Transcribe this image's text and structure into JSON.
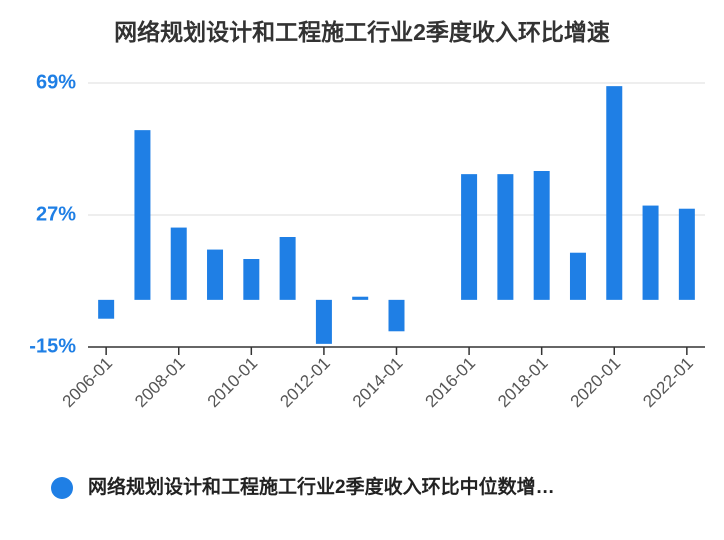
{
  "chart_data": {
    "type": "bar",
    "title": "网络规划设计和工程施工行业2季度收入环比增速",
    "categories": [
      "2006-01",
      null,
      "2008-01",
      null,
      "2010-01",
      null,
      "2012-01",
      null,
      "2014-01",
      null,
      "2016-01",
      null,
      "2018-01",
      null,
      "2020-01",
      null,
      "2022-01"
    ],
    "series": [
      {
        "name": "网络规划设计和工程施工行业2季度收入环比中位数增…",
        "color": "#1f7fe5",
        "values": [
          -6,
          54,
          23,
          16,
          13,
          20,
          -14,
          1,
          -10,
          0,
          40,
          40,
          41,
          15,
          68,
          30,
          29
        ]
      }
    ],
    "ylim": [
      -15,
      69
    ],
    "yticks": [
      {
        "value": -15,
        "label": "-15%"
      },
      {
        "value": 27,
        "label": "27%"
      },
      {
        "value": 69,
        "label": "69%"
      }
    ],
    "grid": true
  }
}
